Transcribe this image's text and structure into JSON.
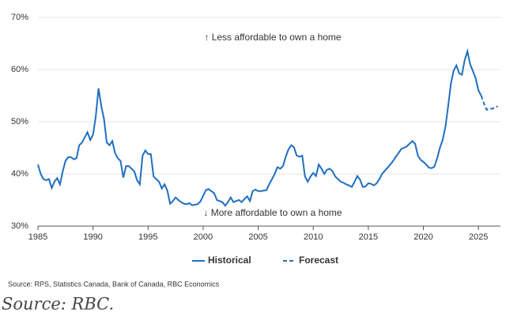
{
  "chart_data": {
    "type": "line",
    "annotations": [
      "↑ Less affordable to own a home",
      "↓ More affordable to own a home"
    ],
    "source": "Source: RPS, Statistics Canada, Bank of Canada, RBC Economics",
    "credit": "Source: RBC.",
    "series": [
      {
        "name": "Historical",
        "color": "#1f6fc0",
        "dash": false,
        "x": [
          1985,
          1985.25,
          1985.5,
          1985.75,
          1986,
          1986.25,
          1986.5,
          1986.75,
          1987,
          1987.25,
          1987.5,
          1987.75,
          1988,
          1988.25,
          1988.5,
          1988.75,
          1989,
          1989.25,
          1989.5,
          1989.75,
          1990,
          1990.25,
          1990.5,
          1990.75,
          1991,
          1991.25,
          1991.5,
          1991.75,
          1992,
          1992.25,
          1992.5,
          1992.75,
          1993,
          1993.25,
          1993.5,
          1993.75,
          1994,
          1994.25,
          1994.5,
          1994.75,
          1995,
          1995.25,
          1995.5,
          1995.75,
          1996,
          1996.25,
          1996.5,
          1996.75,
          1997,
          1997.25,
          1997.5,
          1997.75,
          1998,
          1998.25,
          1998.5,
          1998.75,
          1999,
          1999.25,
          1999.5,
          1999.75,
          2000,
          2000.25,
          2000.5,
          2000.75,
          2001,
          2001.25,
          2001.5,
          2001.75,
          2002,
          2002.25,
          2002.5,
          2002.75,
          2003,
          2003.25,
          2003.5,
          2003.75,
          2004,
          2004.25,
          2004.5,
          2004.75,
          2005,
          2005.25,
          2005.5,
          2005.75,
          2006,
          2006.25,
          2006.5,
          2006.75,
          2007,
          2007.25,
          2007.5,
          2007.75,
          2008,
          2008.25,
          2008.5,
          2008.75,
          2009,
          2009.25,
          2009.5,
          2009.75,
          2010,
          2010.25,
          2010.5,
          2010.75,
          2011,
          2011.25,
          2011.5,
          2011.75,
          2012,
          2012.25,
          2012.5,
          2012.75,
          2013,
          2013.25,
          2013.5,
          2013.75,
          2014,
          2014.25,
          2014.5,
          2014.75,
          2015,
          2015.25,
          2015.5,
          2015.75,
          2016,
          2016.25,
          2016.5,
          2016.75,
          2017,
          2017.25,
          2017.5,
          2017.75,
          2018,
          2018.25,
          2018.5,
          2018.75,
          2019,
          2019.25,
          2019.5,
          2019.75,
          2020,
          2020.25,
          2020.5,
          2020.75,
          2021,
          2021.25,
          2021.5,
          2021.75,
          2022,
          2022.25,
          2022.5,
          2022.75,
          2023,
          2023.25,
          2023.5,
          2023.75,
          2024,
          2024.25,
          2024.5,
          2024.75,
          2025,
          2025.25
        ],
        "values": [
          41.8,
          40,
          39,
          38.8,
          39,
          37.3,
          38.5,
          39.2,
          38,
          40.5,
          42.5,
          43.2,
          43.2,
          42.8,
          43,
          45.5,
          46,
          47,
          48,
          46.5,
          47.5,
          51,
          56.4,
          53,
          50.5,
          46,
          45.5,
          46.3,
          44,
          43,
          42.5,
          39.3,
          41.5,
          41.5,
          41,
          40.5,
          38.8,
          38,
          43.5,
          44.5,
          43.8,
          43.8,
          39.5,
          39,
          38.5,
          37.2,
          38,
          36.8,
          34.3,
          34.8,
          35.5,
          35,
          34.6,
          34.3,
          34.2,
          34.4,
          34,
          34.1,
          34.2,
          34.7,
          35.8,
          36.9,
          37.1,
          36.7,
          36.3,
          35,
          34.8,
          34.6,
          33.9,
          34.6,
          35.5,
          34.6,
          34.8,
          35,
          34.6,
          35.2,
          35.7,
          34.8,
          36.7,
          37,
          36.7,
          36.7,
          36.8,
          36.9,
          38,
          39,
          40,
          41.3,
          41,
          41.5,
          43.3,
          44.7,
          45.5,
          45.1,
          43.5,
          43.3,
          43.5,
          39.5,
          38.5,
          39.5,
          40.2,
          39.6,
          41.8,
          41,
          40,
          40.8,
          41,
          40.5,
          39.5,
          39,
          38.5,
          38.3,
          38,
          37.8,
          37.5,
          38.5,
          39.6,
          38.9,
          37.5,
          37.6,
          38.2,
          38.1,
          37.8,
          38.2,
          39,
          40,
          40.6,
          41.2,
          41.8,
          42.5,
          43.3,
          44,
          44.8,
          45,
          45.3,
          45.8,
          46.3,
          45.8,
          43.5,
          42.7,
          42.3,
          41.8,
          41.2,
          41.1,
          41.4,
          43,
          45,
          46.5,
          49,
          53,
          57.3,
          59.8,
          60.8,
          59.3,
          59,
          61.8,
          63.5,
          61,
          59.7,
          58.3,
          56,
          55
        ]
      },
      {
        "name": "Forecast",
        "color": "#1f6fc0",
        "dash": true,
        "x": [
          2025.25,
          2025.5,
          2025.75,
          2026,
          2026.25,
          2026.5,
          2026.75
        ],
        "values": [
          55,
          53.5,
          52.3,
          52.5,
          52.5,
          52.7,
          53
        ]
      }
    ],
    "xlim": [
      1985,
      2027
    ],
    "xticks": [
      1985,
      1990,
      1995,
      2000,
      2005,
      2010,
      2015,
      2020,
      2025
    ],
    "ylim": [
      30,
      70
    ],
    "yticks": [
      {
        "value": 30,
        "label": "30%"
      },
      {
        "value": 40,
        "label": "40%"
      },
      {
        "value": 50,
        "label": "50%"
      },
      {
        "value": 60,
        "label": "60%"
      },
      {
        "value": 70,
        "label": "70%"
      }
    ],
    "grid": true,
    "legend": "bottom"
  }
}
